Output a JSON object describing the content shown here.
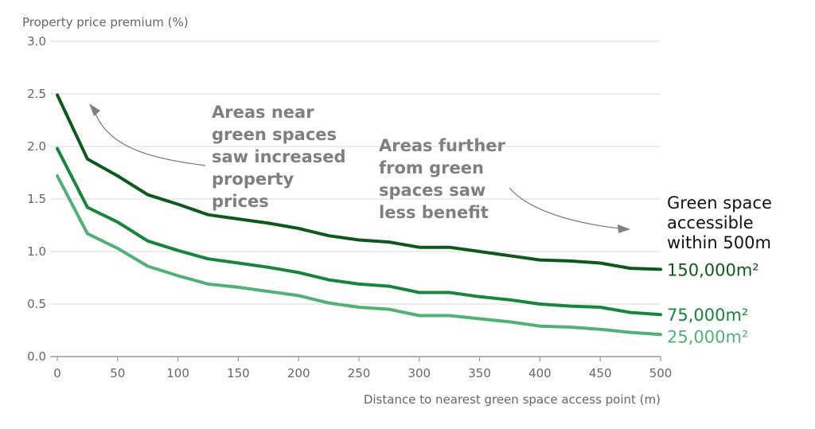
{
  "chart_data": {
    "type": "line",
    "ylabel": "Property price premium (%)",
    "xlabel": "Distance to nearest green space access point (m)",
    "xlim": [
      0,
      500
    ],
    "ylim": [
      0,
      3.0
    ],
    "x_ticks": [
      0,
      50,
      100,
      150,
      200,
      250,
      300,
      350,
      400,
      450,
      500
    ],
    "y_ticks": [
      "0.0",
      "0.5",
      "1.0",
      "1.5",
      "2.0",
      "2.5",
      "3.0"
    ],
    "grid": true,
    "legend_title": [
      "Green space",
      "accessible",
      "within 500m"
    ],
    "x": [
      0,
      25,
      50,
      75,
      100,
      125,
      150,
      175,
      200,
      225,
      250,
      275,
      300,
      325,
      350,
      375,
      400,
      425,
      450,
      475,
      500
    ],
    "series": [
      {
        "name": "150,000m²",
        "color": "#0b5a1b",
        "values": [
          2.49,
          1.88,
          1.72,
          1.54,
          1.45,
          1.35,
          1.31,
          1.27,
          1.22,
          1.15,
          1.11,
          1.09,
          1.04,
          1.04,
          1.0,
          0.96,
          0.92,
          0.91,
          0.89,
          0.84,
          0.83
        ]
      },
      {
        "name": "75,000m²",
        "color": "#15873a",
        "values": [
          1.98,
          1.42,
          1.28,
          1.1,
          1.01,
          0.93,
          0.89,
          0.85,
          0.8,
          0.73,
          0.69,
          0.67,
          0.61,
          0.61,
          0.57,
          0.54,
          0.5,
          0.48,
          0.47,
          0.42,
          0.4
        ]
      },
      {
        "name": "25,000m²",
        "color": "#4fb275",
        "values": [
          1.72,
          1.17,
          1.03,
          0.86,
          0.77,
          0.69,
          0.66,
          0.62,
          0.58,
          0.51,
          0.47,
          0.45,
          0.39,
          0.39,
          0.36,
          0.33,
          0.29,
          0.28,
          0.26,
          0.23,
          0.21
        ]
      }
    ],
    "annotations": [
      {
        "lines": [
          "Areas near",
          "green spaces",
          "saw increased",
          "property",
          "prices"
        ]
      },
      {
        "lines": [
          "Areas further",
          "from green",
          "spaces saw",
          "less benefit"
        ]
      }
    ]
  }
}
